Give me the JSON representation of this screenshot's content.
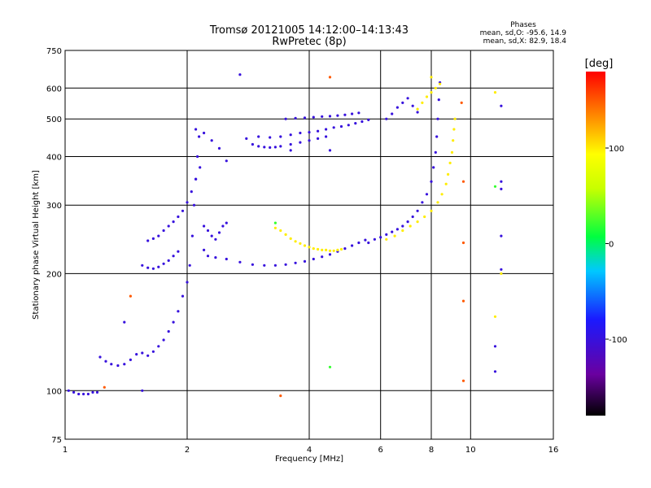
{
  "chart_data": {
    "type": "scatter",
    "title": "Tromsø 20121005 14:12:00–14:13:43",
    "subtitle": "RwPretec (8p)",
    "xlabel": "Frequency [MHz]",
    "ylabel": "Stationary phase Virtual Height [km]",
    "x_scale": "log",
    "y_scale": "log",
    "xlim": [
      1,
      16
    ],
    "ylim": [
      75,
      750
    ],
    "x_ticks": [
      1,
      2,
      4,
      6,
      8,
      10,
      16
    ],
    "x_tick_labels": [
      "1",
      "2",
      "4",
      "6",
      "8",
      "10",
      "16"
    ],
    "y_ticks": [
      75,
      100,
      200,
      300,
      400,
      500,
      600,
      750
    ],
    "y_tick_labels": [
      "75",
      "100",
      "200",
      "300",
      "400",
      "500",
      "600",
      "750"
    ],
    "grid": true,
    "stats": {
      "heading": "Phases",
      "line_o": "mean, sd,O: -95.6, 14.9",
      "line_x": "mean, sd,X:  82.9, 18.4"
    },
    "colorbar": {
      "label": "[deg]",
      "range": [
        -180,
        180
      ],
      "ticks": [
        100,
        0,
        -100
      ],
      "tick_labels": [
        "100",
        "0",
        "-100"
      ]
    },
    "series": [
      {
        "name": "",
        "phase": -100,
        "points": [
          [
            1.02,
            100
          ],
          [
            1.05,
            99
          ],
          [
            1.08,
            98
          ],
          [
            1.11,
            98
          ],
          [
            1.14,
            98
          ],
          [
            1.17,
            99
          ],
          [
            1.2,
            99
          ]
        ]
      },
      {
        "name": "",
        "phase": -100,
        "points": [
          [
            1.22,
            122
          ],
          [
            1.26,
            119
          ],
          [
            1.3,
            117
          ],
          [
            1.35,
            116
          ],
          [
            1.4,
            117
          ],
          [
            1.45,
            120
          ],
          [
            1.5,
            124
          ],
          [
            1.55,
            125
          ],
          [
            1.6,
            123
          ],
          [
            1.65,
            126
          ],
          [
            1.7,
            130
          ],
          [
            1.75,
            135
          ],
          [
            1.8,
            142
          ],
          [
            1.85,
            150
          ],
          [
            1.9,
            160
          ],
          [
            1.95,
            175
          ],
          [
            2.0,
            190
          ],
          [
            2.03,
            210
          ],
          [
            2.06,
            250
          ],
          [
            2.08,
            300
          ],
          [
            2.1,
            350
          ],
          [
            2.12,
            400
          ],
          [
            2.14,
            450
          ]
        ]
      },
      {
        "name": "",
        "phase": -100,
        "points": [
          [
            1.55,
            210
          ],
          [
            1.6,
            207
          ],
          [
            1.65,
            206
          ],
          [
            1.7,
            208
          ],
          [
            1.75,
            212
          ],
          [
            1.8,
            216
          ],
          [
            1.85,
            222
          ],
          [
            1.9,
            228
          ]
        ]
      },
      {
        "name": "",
        "phase": -100,
        "points": [
          [
            1.6,
            243
          ],
          [
            1.65,
            246
          ],
          [
            1.7,
            250
          ],
          [
            1.75,
            258
          ],
          [
            1.8,
            265
          ],
          [
            1.85,
            272
          ],
          [
            1.9,
            280
          ],
          [
            1.95,
            290
          ],
          [
            2.0,
            305
          ],
          [
            2.05,
            325
          ],
          [
            2.1,
            350
          ],
          [
            2.15,
            375
          ]
        ]
      },
      {
        "name": "",
        "phase": -100,
        "points": [
          [
            2.2,
            230
          ],
          [
            2.25,
            222
          ],
          [
            2.35,
            220
          ],
          [
            2.5,
            218
          ],
          [
            2.7,
            214
          ],
          [
            2.9,
            211
          ],
          [
            3.1,
            210
          ],
          [
            3.3,
            210
          ],
          [
            3.5,
            211
          ],
          [
            3.7,
            213
          ],
          [
            3.9,
            215
          ],
          [
            4.1,
            218
          ],
          [
            4.3,
            221
          ],
          [
            4.5,
            224
          ],
          [
            4.7,
            228
          ],
          [
            4.9,
            232
          ],
          [
            5.1,
            236
          ],
          [
            5.3,
            240
          ],
          [
            5.5,
            244
          ]
        ]
      },
      {
        "name": "",
        "phase": -100,
        "points": [
          [
            2.2,
            265
          ],
          [
            2.25,
            258
          ],
          [
            2.3,
            250
          ],
          [
            2.35,
            245
          ],
          [
            2.4,
            255
          ],
          [
            2.45,
            265
          ],
          [
            2.5,
            270
          ]
        ]
      },
      {
        "name": "",
        "phase": -100,
        "points": [
          [
            2.1,
            470
          ],
          [
            2.2,
            460
          ],
          [
            2.3,
            440
          ],
          [
            2.4,
            420
          ],
          [
            2.5,
            390
          ]
        ]
      },
      {
        "name": "",
        "phase": -100,
        "points": [
          [
            3.0,
            450
          ],
          [
            3.2,
            448
          ],
          [
            3.4,
            450
          ],
          [
            3.6,
            455
          ],
          [
            3.8,
            460
          ],
          [
            4.0,
            462
          ],
          [
            4.2,
            465
          ],
          [
            4.4,
            470
          ],
          [
            4.6,
            475
          ],
          [
            4.8,
            478
          ],
          [
            5.0,
            482
          ],
          [
            5.2,
            487
          ],
          [
            5.4,
            492
          ],
          [
            5.6,
            497
          ]
        ]
      },
      {
        "name": "",
        "phase": -100,
        "points": [
          [
            2.8,
            445
          ],
          [
            2.9,
            430
          ],
          [
            3.0,
            425
          ],
          [
            3.1,
            423
          ],
          [
            3.2,
            422
          ],
          [
            3.3,
            423
          ],
          [
            3.4,
            425
          ],
          [
            3.6,
            430
          ],
          [
            3.8,
            435
          ],
          [
            4.0,
            440
          ],
          [
            4.2,
            445
          ],
          [
            4.4,
            450
          ]
        ]
      },
      {
        "name": "",
        "phase": -100,
        "points": [
          [
            3.5,
            500
          ],
          [
            3.7,
            502
          ],
          [
            3.9,
            503
          ],
          [
            4.1,
            505
          ],
          [
            4.3,
            507
          ],
          [
            4.5,
            508
          ],
          [
            4.7,
            510
          ],
          [
            4.9,
            512
          ],
          [
            5.1,
            515
          ],
          [
            5.3,
            518
          ]
        ]
      },
      {
        "name": "",
        "phase": -100,
        "points": [
          [
            5.6,
            240
          ],
          [
            5.8,
            245
          ],
          [
            6.0,
            248
          ],
          [
            6.2,
            252
          ],
          [
            6.4,
            256
          ],
          [
            6.6,
            260
          ],
          [
            6.8,
            265
          ],
          [
            7.0,
            272
          ],
          [
            7.2,
            280
          ],
          [
            7.4,
            290
          ],
          [
            7.6,
            305
          ],
          [
            7.8,
            320
          ],
          [
            8.0,
            345
          ],
          [
            8.1,
            375
          ],
          [
            8.2,
            410
          ],
          [
            8.25,
            450
          ],
          [
            8.3,
            500
          ],
          [
            8.35,
            560
          ],
          [
            8.4,
            620
          ]
        ]
      },
      {
        "name": "",
        "phase": -100,
        "points": [
          [
            6.2,
            500
          ],
          [
            6.4,
            515
          ],
          [
            6.6,
            535
          ],
          [
            6.8,
            550
          ],
          [
            7.0,
            565
          ],
          [
            7.2,
            540
          ],
          [
            7.4,
            520
          ]
        ]
      },
      {
        "name": "",
        "phase": 100,
        "points": [
          [
            3.3,
            262
          ],
          [
            3.4,
            258
          ],
          [
            3.5,
            252
          ],
          [
            3.6,
            246
          ],
          [
            3.7,
            242
          ],
          [
            3.8,
            239
          ],
          [
            3.9,
            236
          ],
          [
            4.0,
            234
          ],
          [
            4.1,
            232
          ],
          [
            4.2,
            231
          ],
          [
            4.3,
            230
          ],
          [
            4.4,
            230
          ],
          [
            4.5,
            229
          ],
          [
            4.6,
            229
          ],
          [
            4.7,
            230
          ],
          [
            4.8,
            231
          ]
        ]
      },
      {
        "name": "",
        "phase": 100,
        "points": [
          [
            6.2,
            245
          ],
          [
            6.5,
            250
          ],
          [
            6.8,
            258
          ],
          [
            7.1,
            265
          ],
          [
            7.4,
            272
          ],
          [
            7.7,
            280
          ],
          [
            8.0,
            290
          ],
          [
            8.3,
            305
          ],
          [
            8.5,
            320
          ],
          [
            8.7,
            340
          ],
          [
            8.8,
            360
          ],
          [
            8.9,
            385
          ],
          [
            9.0,
            410
          ],
          [
            9.05,
            440
          ],
          [
            9.1,
            470
          ],
          [
            9.15,
            500
          ]
        ]
      },
      {
        "name": "",
        "phase": 100,
        "points": [
          [
            7.4,
            530
          ],
          [
            7.6,
            550
          ],
          [
            7.8,
            570
          ],
          [
            8.0,
            585
          ],
          [
            8.2,
            600
          ],
          [
            8.4,
            615
          ]
        ]
      },
      {
        "name": "",
        "phase": -100,
        "points": [
          [
            2.7,
            650
          ],
          [
            11.9,
            540
          ],
          [
            11.9,
            345
          ],
          [
            11.9,
            330
          ],
          [
            11.9,
            250
          ],
          [
            11.9,
            205
          ],
          [
            11.5,
            130
          ],
          [
            11.5,
            112
          ],
          [
            3.6,
            415
          ],
          [
            4.5,
            415
          ],
          [
            1.55,
            100
          ],
          [
            1.4,
            150
          ]
        ]
      },
      {
        "name": "",
        "phase": 100,
        "points": [
          [
            11.5,
            585
          ],
          [
            11.9,
            200
          ],
          [
            11.5,
            155
          ],
          [
            8.0,
            640
          ]
        ]
      },
      {
        "name": "",
        "phase": 20,
        "points": [
          [
            3.3,
            270
          ],
          [
            4.5,
            115
          ],
          [
            11.5,
            335
          ]
        ]
      },
      {
        "name": "",
        "phase": 150,
        "points": [
          [
            4.5,
            640
          ],
          [
            1.25,
            102
          ],
          [
            3.4,
            97
          ],
          [
            1.45,
            175
          ],
          [
            9.6,
            106
          ],
          [
            9.6,
            170
          ],
          [
            9.6,
            345
          ],
          [
            9.6,
            240
          ],
          [
            9.5,
            550
          ]
        ]
      }
    ]
  }
}
